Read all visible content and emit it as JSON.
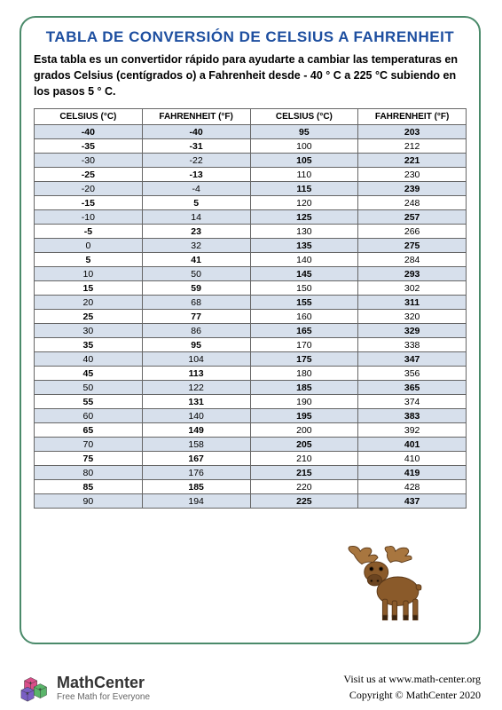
{
  "title": "TABLA DE CONVERSIÓN DE CELSIUS A FAHRENHEIT",
  "desc": "Esta tabla es un convertidor rápido para ayudarte a cambiar las temperaturas en grados Celsius (centígrados o) a Fahrenheit desde - 40 ° C a 225 °C subiendo en los pasos 5 ° C.",
  "headers": {
    "c": "CELSIUS (°C)",
    "f": "FAHRENHEIT (°F)"
  },
  "colors": {
    "frame_border": "#4a8a6a",
    "title_color": "#1e4fa0",
    "row_alt_bg": "#d7e0ec",
    "row_bg": "#ffffff",
    "cell_border": "#666666"
  },
  "left": [
    {
      "c": "-40",
      "f": "-40",
      "alt": true,
      "bold": true
    },
    {
      "c": "-35",
      "f": "-31",
      "alt": false,
      "bold": true
    },
    {
      "c": "-30",
      "f": "-22",
      "alt": true,
      "bold": false
    },
    {
      "c": "-25",
      "f": "-13",
      "alt": false,
      "bold": true
    },
    {
      "c": "-20",
      "f": "-4",
      "alt": true,
      "bold": false
    },
    {
      "c": "-15",
      "f": "5",
      "alt": false,
      "bold": true
    },
    {
      "c": "-10",
      "f": "14",
      "alt": true,
      "bold": false
    },
    {
      "c": "-5",
      "f": "23",
      "alt": false,
      "bold": true
    },
    {
      "c": "0",
      "f": "32",
      "alt": true,
      "bold": false
    },
    {
      "c": "5",
      "f": "41",
      "alt": false,
      "bold": true
    },
    {
      "c": "10",
      "f": "50",
      "alt": true,
      "bold": false
    },
    {
      "c": "15",
      "f": "59",
      "alt": false,
      "bold": true
    },
    {
      "c": "20",
      "f": "68",
      "alt": true,
      "bold": false
    },
    {
      "c": "25",
      "f": "77",
      "alt": false,
      "bold": true
    },
    {
      "c": "30",
      "f": "86",
      "alt": true,
      "bold": false
    },
    {
      "c": "35",
      "f": "95",
      "alt": false,
      "bold": true
    },
    {
      "c": "40",
      "f": "104",
      "alt": true,
      "bold": false
    },
    {
      "c": "45",
      "f": "113",
      "alt": false,
      "bold": true
    },
    {
      "c": "50",
      "f": "122",
      "alt": true,
      "bold": false
    },
    {
      "c": "55",
      "f": "131",
      "alt": false,
      "bold": true
    },
    {
      "c": "60",
      "f": "140",
      "alt": true,
      "bold": false
    },
    {
      "c": "65",
      "f": "149",
      "alt": false,
      "bold": true
    },
    {
      "c": "70",
      "f": "158",
      "alt": true,
      "bold": false
    },
    {
      "c": "75",
      "f": "167",
      "alt": false,
      "bold": true
    },
    {
      "c": "80",
      "f": "176",
      "alt": true,
      "bold": false
    },
    {
      "c": "85",
      "f": "185",
      "alt": false,
      "bold": true
    },
    {
      "c": "90",
      "f": "194",
      "alt": true,
      "bold": false
    }
  ],
  "right": [
    {
      "c": "95",
      "f": "203",
      "alt": false,
      "bold": true
    },
    {
      "c": "100",
      "f": "212",
      "alt": true,
      "bold": false
    },
    {
      "c": "105",
      "f": "221",
      "alt": false,
      "bold": true
    },
    {
      "c": "110",
      "f": "230",
      "alt": true,
      "bold": false
    },
    {
      "c": "115",
      "f": "239",
      "alt": false,
      "bold": true
    },
    {
      "c": "120",
      "f": "248",
      "alt": true,
      "bold": false
    },
    {
      "c": "125",
      "f": "257",
      "alt": false,
      "bold": true
    },
    {
      "c": "130",
      "f": "266",
      "alt": true,
      "bold": false
    },
    {
      "c": "135",
      "f": "275",
      "alt": false,
      "bold": true
    },
    {
      "c": "140",
      "f": "284",
      "alt": true,
      "bold": false
    },
    {
      "c": "145",
      "f": "293",
      "alt": false,
      "bold": true
    },
    {
      "c": "150",
      "f": "302",
      "alt": true,
      "bold": false
    },
    {
      "c": "155",
      "f": "311",
      "alt": false,
      "bold": true
    },
    {
      "c": "160",
      "f": "320",
      "alt": true,
      "bold": false
    },
    {
      "c": "165",
      "f": "329",
      "alt": false,
      "bold": true
    },
    {
      "c": "170",
      "f": "338",
      "alt": true,
      "bold": false
    },
    {
      "c": "175",
      "f": "347",
      "alt": false,
      "bold": true
    },
    {
      "c": "180",
      "f": "356",
      "alt": true,
      "bold": false
    },
    {
      "c": "185",
      "f": "365",
      "alt": false,
      "bold": true
    },
    {
      "c": "190",
      "f": "374",
      "alt": true,
      "bold": false
    },
    {
      "c": "195",
      "f": "383",
      "alt": false,
      "bold": true
    },
    {
      "c": "200",
      "f": "392",
      "alt": true,
      "bold": false
    },
    {
      "c": "205",
      "f": "401",
      "alt": false,
      "bold": true
    },
    {
      "c": "210",
      "f": "410",
      "alt": true,
      "bold": false
    },
    {
      "c": "215",
      "f": "419",
      "alt": false,
      "bold": true
    },
    {
      "c": "220",
      "f": "428",
      "alt": true,
      "bold": false
    },
    {
      "c": "225",
      "f": "437",
      "alt": false,
      "bold": true
    }
  ],
  "brand": {
    "name": "MathCenter",
    "sub": "Free Math for Everyone"
  },
  "footer": {
    "visit": "Visit us at www.math-center.org",
    "copy": "Copyright © MathCenter 2020"
  }
}
